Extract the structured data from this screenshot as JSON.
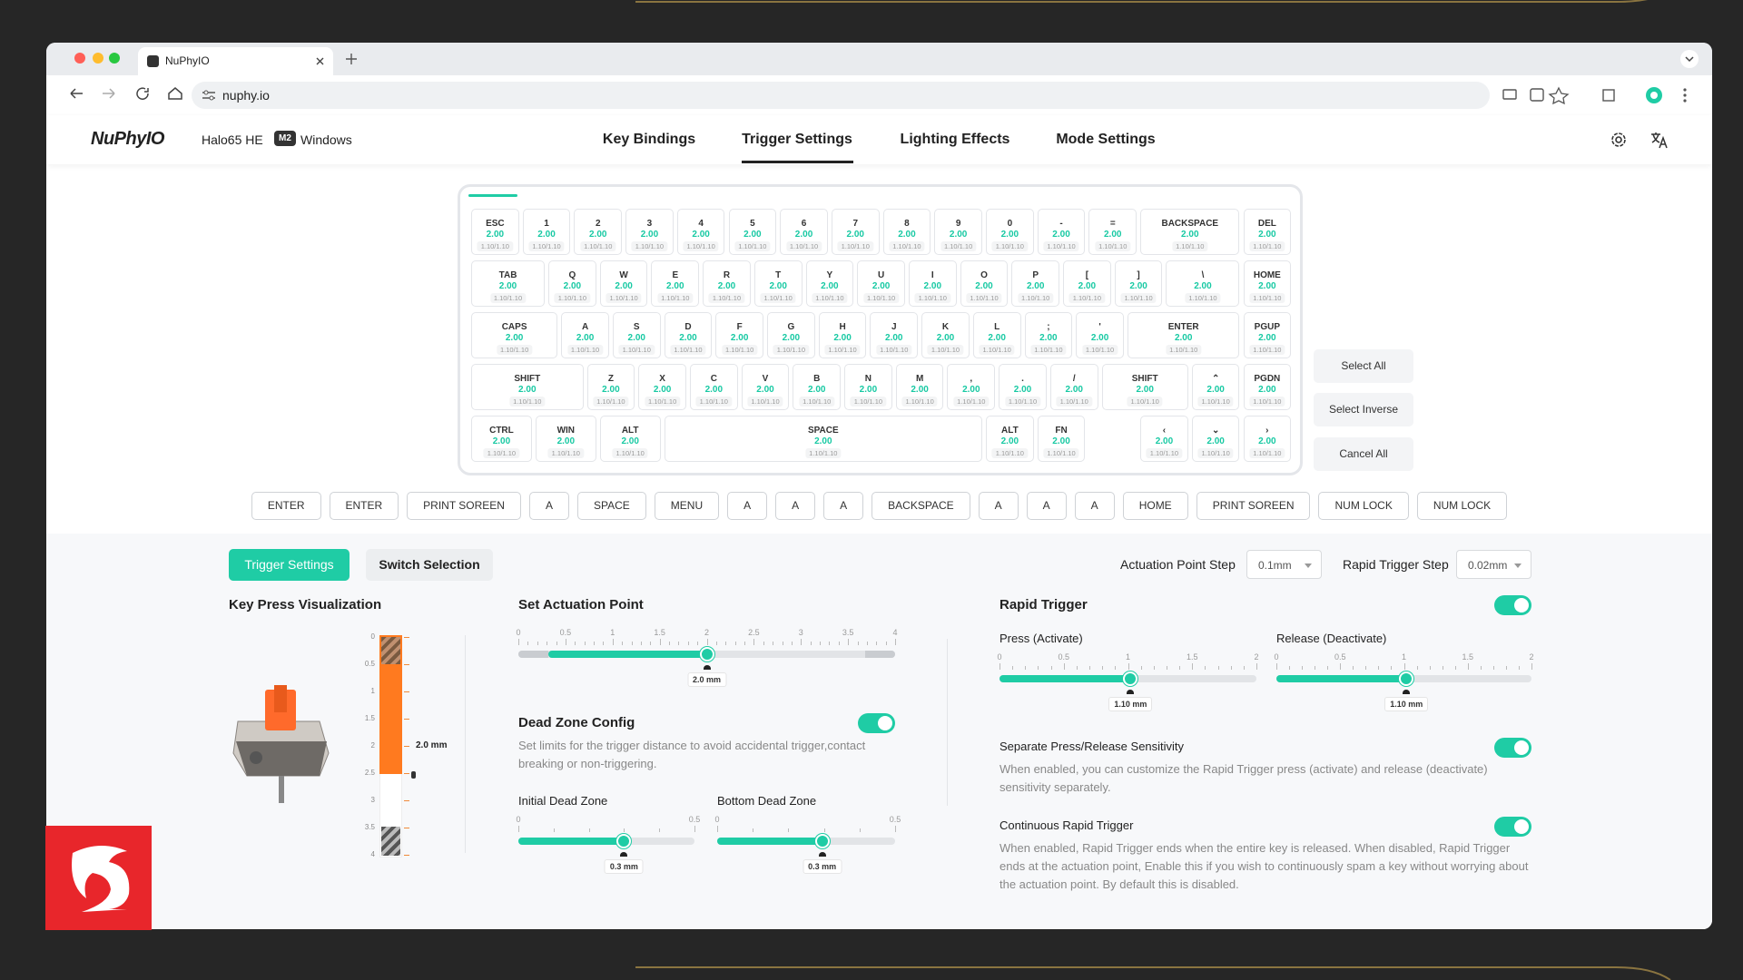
{
  "browser": {
    "tab_title": "NuPhyIO",
    "url": "nuphy.io"
  },
  "header": {
    "logo": "NuPhyIO",
    "model": "Halo65 HE",
    "badge": "M2",
    "os": "Windows",
    "nav": [
      "Key Bindings",
      "Trigger Settings",
      "Lighting Effects",
      "Mode Settings"
    ]
  },
  "keyboard": {
    "rows": [
      [
        {
          "label": "ESC",
          "value": "2.00",
          "range": "1.10/1.10"
        },
        {
          "label": "1",
          "value": "2.00",
          "range": "1.10/1.10"
        },
        {
          "label": "2",
          "value": "2.00",
          "range": "1.10/1.10"
        },
        {
          "label": "3",
          "value": "2.00",
          "range": "1.10/1.10"
        },
        {
          "label": "4",
          "value": "2.00",
          "range": "1.10/1.10"
        },
        {
          "label": "5",
          "value": "2.00",
          "range": "1.10/1.10"
        },
        {
          "label": "6",
          "value": "2.00",
          "range": "1.10/1.10"
        },
        {
          "label": "7",
          "value": "2.00",
          "range": "1.10/1.10"
        },
        {
          "label": "8",
          "value": "2.00",
          "range": "1.10/1.10"
        },
        {
          "label": "9",
          "value": "2.00",
          "range": "1.10/1.10"
        },
        {
          "label": "0",
          "value": "2.00",
          "range": "1.10/1.10"
        },
        {
          "label": "-",
          "value": "2.00",
          "range": "1.10/1.10"
        },
        {
          "label": "=",
          "value": "2.00",
          "range": "1.10/1.10"
        },
        {
          "label": "BACKSPACE",
          "value": "2.00",
          "range": "1.10/1.10"
        },
        {
          "label": "DEL",
          "value": "2.00",
          "range": "1.10/1.10"
        }
      ],
      [
        {
          "label": "TAB",
          "value": "2.00",
          "range": "1.10/1.10"
        },
        {
          "label": "Q",
          "value": "2.00",
          "range": "1.10/1.10"
        },
        {
          "label": "W",
          "value": "2.00",
          "range": "1.10/1.10"
        },
        {
          "label": "E",
          "value": "2.00",
          "range": "1.10/1.10"
        },
        {
          "label": "R",
          "value": "2.00",
          "range": "1.10/1.10"
        },
        {
          "label": "T",
          "value": "2.00",
          "range": "1.10/1.10"
        },
        {
          "label": "Y",
          "value": "2.00",
          "range": "1.10/1.10"
        },
        {
          "label": "U",
          "value": "2.00",
          "range": "1.10/1.10"
        },
        {
          "label": "I",
          "value": "2.00",
          "range": "1.10/1.10"
        },
        {
          "label": "O",
          "value": "2.00",
          "range": "1.10/1.10"
        },
        {
          "label": "P",
          "value": "2.00",
          "range": "1.10/1.10"
        },
        {
          "label": "[",
          "value": "2.00",
          "range": "1.10/1.10"
        },
        {
          "label": "]",
          "value": "2.00",
          "range": "1.10/1.10"
        },
        {
          "label": "\\",
          "value": "2.00",
          "range": "1.10/1.10"
        },
        {
          "label": "HOME",
          "value": "2.00",
          "range": "1.10/1.10"
        }
      ],
      [
        {
          "label": "CAPS",
          "value": "2.00",
          "range": "1.10/1.10"
        },
        {
          "label": "A",
          "value": "2.00",
          "range": "1.10/1.10"
        },
        {
          "label": "S",
          "value": "2.00",
          "range": "1.10/1.10"
        },
        {
          "label": "D",
          "value": "2.00",
          "range": "1.10/1.10"
        },
        {
          "label": "F",
          "value": "2.00",
          "range": "1.10/1.10"
        },
        {
          "label": "G",
          "value": "2.00",
          "range": "1.10/1.10"
        },
        {
          "label": "H",
          "value": "2.00",
          "range": "1.10/1.10"
        },
        {
          "label": "J",
          "value": "2.00",
          "range": "1.10/1.10"
        },
        {
          "label": "K",
          "value": "2.00",
          "range": "1.10/1.10"
        },
        {
          "label": "L",
          "value": "2.00",
          "range": "1.10/1.10"
        },
        {
          "label": ";",
          "value": "2.00",
          "range": "1.10/1.10"
        },
        {
          "label": "'",
          "value": "2.00",
          "range": "1.10/1.10"
        },
        {
          "label": "ENTER",
          "value": "2.00",
          "range": "1.10/1.10"
        },
        {
          "label": "PGUP",
          "value": "2.00",
          "range": "1.10/1.10"
        }
      ],
      [
        {
          "label": "SHIFT",
          "value": "2.00",
          "range": "1.10/1.10"
        },
        {
          "label": "Z",
          "value": "2.00",
          "range": "1.10/1.10"
        },
        {
          "label": "X",
          "value": "2.00",
          "range": "1.10/1.10"
        },
        {
          "label": "C",
          "value": "2.00",
          "range": "1.10/1.10"
        },
        {
          "label": "V",
          "value": "2.00",
          "range": "1.10/1.10"
        },
        {
          "label": "B",
          "value": "2.00",
          "range": "1.10/1.10"
        },
        {
          "label": "N",
          "value": "2.00",
          "range": "1.10/1.10"
        },
        {
          "label": "M",
          "value": "2.00",
          "range": "1.10/1.10"
        },
        {
          "label": ",",
          "value": "2.00",
          "range": "1.10/1.10"
        },
        {
          "label": ".",
          "value": "2.00",
          "range": "1.10/1.10"
        },
        {
          "label": "/",
          "value": "2.00",
          "range": "1.10/1.10"
        },
        {
          "label": "SHIFT",
          "value": "2.00",
          "range": "1.10/1.10"
        },
        {
          "label": "⌃",
          "value": "2.00",
          "range": "1.10/1.10"
        },
        {
          "label": "PGDN",
          "value": "2.00",
          "range": "1.10/1.10"
        }
      ],
      [
        {
          "label": "CTRL",
          "value": "2.00",
          "range": "1.10/1.10"
        },
        {
          "label": "WIN",
          "value": "2.00",
          "range": "1.10/1.10"
        },
        {
          "label": "ALT",
          "value": "2.00",
          "range": "1.10/1.10"
        },
        {
          "label": "SPACE",
          "value": "2.00",
          "range": "1.10/1.10"
        },
        {
          "label": "ALT",
          "value": "2.00",
          "range": "1.10/1.10"
        },
        {
          "label": "FN",
          "value": "2.00",
          "range": "1.10/1.10"
        },
        {
          "label": "‹",
          "value": "2.00",
          "range": "1.10/1.10"
        },
        {
          "label": "⌄",
          "value": "2.00",
          "range": "1.10/1.10"
        },
        {
          "label": "›",
          "value": "2.00",
          "range": "1.10/1.10"
        }
      ]
    ]
  },
  "side_buttons": [
    "Select All",
    "Select Inverse",
    "Cancel All"
  ],
  "mapped_keys": [
    "ENTER",
    "ENTER",
    "PRINT SOREEN",
    "A",
    "SPACE",
    "MENU",
    "A",
    "A",
    "A",
    "BACKSPACE",
    "A",
    "A",
    "A",
    "HOME",
    "PRINT SOREEN",
    "NUM LOCK",
    "NUM LOCK"
  ],
  "settings_tabs": [
    "Trigger Settings",
    "Switch Selection"
  ],
  "steps": [
    {
      "label": "Actuation Point Step",
      "value": "0.1mm"
    },
    {
      "label": "Rapid Trigger Step",
      "value": "0.02mm"
    }
  ],
  "visualization": {
    "title": "Key Press Visualization",
    "scale": [
      "0",
      "0.5",
      "1",
      "1.5",
      "2",
      "2.5",
      "3",
      "3.5",
      "4"
    ],
    "value": "2.0 mm"
  },
  "actuation": {
    "title": "Set Actuation Point",
    "scale": [
      "0",
      "0.5",
      "1",
      "1.5",
      "2",
      "2.5",
      "3",
      "3.5",
      "4"
    ],
    "value": "2.0 mm"
  },
  "dead_zone": {
    "title": "Dead Zone Config",
    "description": "Set limits for the trigger distance to avoid accidental trigger,contact breaking or non-triggering.",
    "initial": {
      "title": "Initial Dead Zone",
      "scale": [
        "0",
        "0.5"
      ],
      "value": "0.3 mm"
    },
    "bottom": {
      "title": "Bottom Dead Zone",
      "scale": [
        "0",
        "0.5"
      ],
      "value": "0.3 mm"
    }
  },
  "rapid_trigger": {
    "title": "Rapid Trigger",
    "press": {
      "title": "Press (Activate)",
      "scale": [
        "0",
        "0.5",
        "1",
        "1.5",
        "2"
      ],
      "value": "1.10 mm"
    },
    "release": {
      "title": "Release (Deactivate)",
      "scale": [
        "0",
        "0.5",
        "1",
        "1.5",
        "2"
      ],
      "value": "1.10 mm"
    },
    "separate": {
      "title": "Separate Press/Release Sensitivity",
      "description": "When enabled, you can customize the Rapid Trigger press (activate) and release (deactivate) sensitivity separately."
    },
    "continuous": {
      "title": "Continuous Rapid Trigger",
      "description": "When enabled, Rapid Trigger ends when the entire key is released. When disabled, Rapid Trigger ends at the actuation point, Enable this if you wish to continuously spam a key without worrying about the actuation point. By default this is disabled."
    }
  }
}
